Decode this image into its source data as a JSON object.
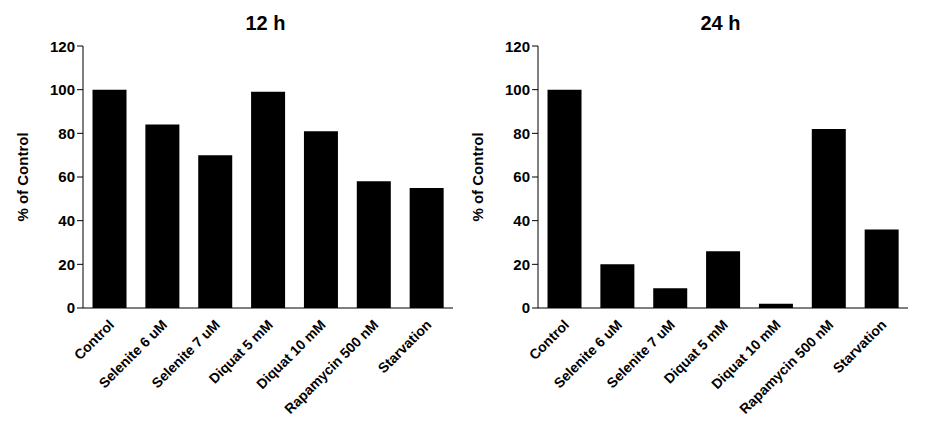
{
  "chart_data": [
    {
      "type": "bar",
      "title": "12 h",
      "ylabel": "% of Control",
      "categories": [
        "Control",
        "Selenite 6 uM",
        "Selenite 7 uM",
        "Diquat 5 mM",
        "Diquat 10 mM",
        "Rapamycin 500 nM",
        "Starvation"
      ],
      "values": [
        100,
        84,
        70,
        99,
        81,
        58,
        55
      ],
      "color": "#000000",
      "ylim": [
        0,
        120
      ],
      "yticks": [
        0,
        20,
        40,
        60,
        80,
        100,
        120
      ],
      "grid": false
    },
    {
      "type": "bar",
      "title": "24 h",
      "ylabel": "% of Control",
      "categories": [
        "Control",
        "Selenite 6 uM",
        "Selenite 7 uM",
        "Diquat 5 mM",
        "Diquat 10 mM",
        "Rapamycin 500 nM",
        "Starvation"
      ],
      "values": [
        100,
        20,
        9,
        26,
        2,
        82,
        36
      ],
      "color": "#000000",
      "ylim": [
        0,
        120
      ],
      "yticks": [
        0,
        20,
        40,
        60,
        80,
        100,
        120
      ],
      "grid": false
    }
  ]
}
